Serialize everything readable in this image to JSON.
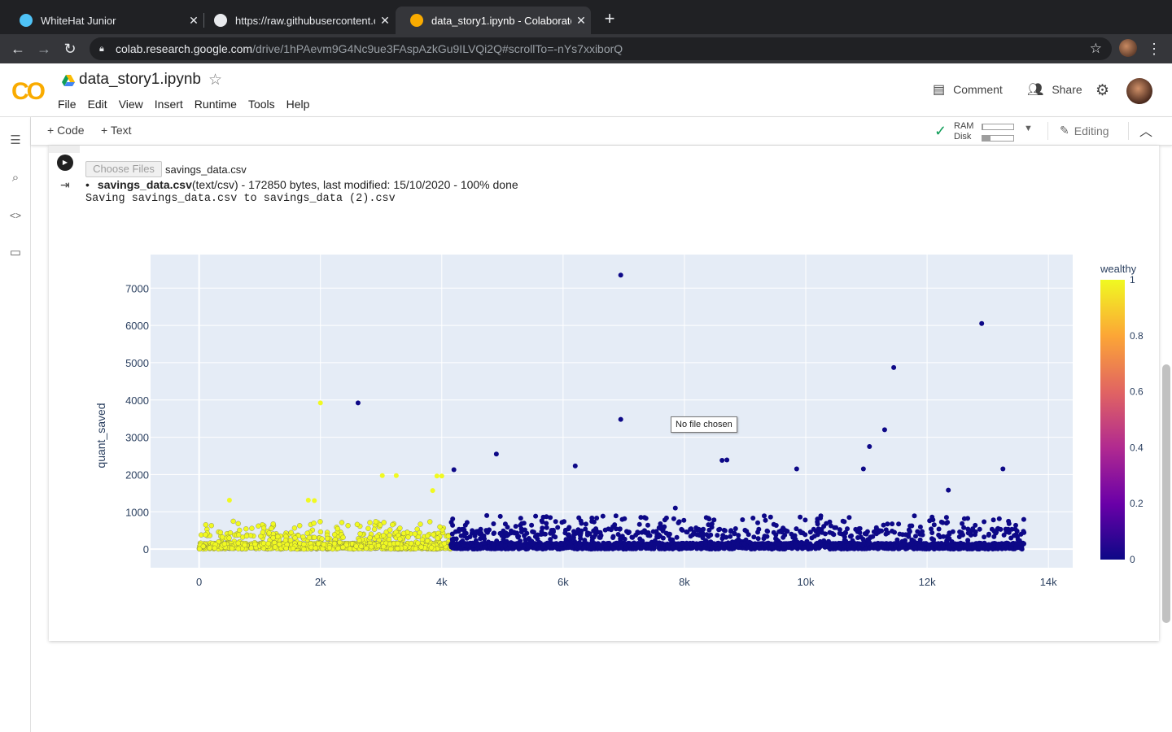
{
  "browser": {
    "tabs": [
      {
        "title": "WhiteHat Junior",
        "active": false,
        "icon": "whitehat-favicon"
      },
      {
        "title": "https://raw.githubusercontent.c",
        "active": false,
        "icon": "globe-icon"
      },
      {
        "title": "data_story1.ipynb - Colaborato",
        "active": true,
        "icon": "colab-favicon"
      }
    ],
    "url_host": "colab.research.google.com",
    "url_path": "/drive/1hPAevm9G4Nc9ue3FAspAzkGu9ILVQi2Q#scrollTo=-nYs7xxiborQ"
  },
  "colab": {
    "logo": "CO",
    "notebook_title": "data_story1.ipynb",
    "menu": [
      "File",
      "Edit",
      "View",
      "Insert",
      "Runtime",
      "Tools",
      "Help"
    ],
    "comment_label": "Comment",
    "share_label": "Share",
    "add_code_label": "+ Code",
    "add_text_label": "+ Text",
    "ram_label": "RAM",
    "disk_label": "Disk",
    "ram_fraction": 0.03,
    "disk_fraction": 0.27,
    "editing_label": "Editing"
  },
  "cell": {
    "choose_files_label": "Choose Files",
    "chosen_file": "savings_data.csv",
    "upload_filename": "savings_data.csv",
    "upload_details": "(text/csv) - 172850 bytes, last modified: 15/10/2020 - 100% done",
    "saving_message": "Saving savings_data.csv to savings_data (2).csv",
    "tooltip": "No file chosen"
  },
  "chart_data": {
    "type": "scatter",
    "xlabel": "",
    "ylabel": "quant_saved",
    "xlim": [
      -800,
      14400
    ],
    "ylim": [
      -500,
      7900
    ],
    "x_ticks": [
      0,
      2000,
      4000,
      6000,
      8000,
      10000,
      12000,
      14000
    ],
    "x_tick_labels": [
      "0",
      "2k",
      "4k",
      "6k",
      "8k",
      "10k",
      "12k",
      "14k"
    ],
    "y_ticks": [
      0,
      1000,
      2000,
      3000,
      4000,
      5000,
      6000,
      7000
    ],
    "y_tick_labels": [
      "0",
      "1000",
      "2000",
      "3000",
      "4000",
      "5000",
      "6000",
      "7000"
    ],
    "colorbar": {
      "title": "wealthy",
      "ticks": [
        0,
        0.2,
        0.4,
        0.6,
        0.8,
        1
      ],
      "tick_labels": [
        "0",
        "0.2",
        "0.4",
        "0.6",
        "0.8",
        "1"
      ],
      "colors": [
        "#0d0887",
        "#6a00a8",
        "#b12a90",
        "#e16462",
        "#fca636",
        "#f0f921"
      ]
    },
    "plot_bgcolor": "#e5ecf6",
    "grid": true,
    "series": [
      {
        "wealthy": 1,
        "x_range": [
          0,
          4150
        ],
        "typical_y": [
          0,
          500
        ]
      },
      {
        "wealthy": 0,
        "x_range": [
          4150,
          13600
        ],
        "typical_y": [
          0,
          600
        ]
      }
    ],
    "notable_points": [
      {
        "x": 6950,
        "y": 7350,
        "wealthy": 0
      },
      {
        "x": 12900,
        "y": 6050,
        "wealthy": 0
      },
      {
        "x": 11450,
        "y": 4870,
        "wealthy": 0
      },
      {
        "x": 2000,
        "y": 3920,
        "wealthy": 1
      },
      {
        "x": 2620,
        "y": 3920,
        "wealthy": 0
      },
      {
        "x": 6950,
        "y": 3480,
        "wealthy": 0
      },
      {
        "x": 11300,
        "y": 3200,
        "wealthy": 0
      },
      {
        "x": 11050,
        "y": 2750,
        "wealthy": 0
      },
      {
        "x": 4900,
        "y": 2550,
        "wealthy": 0
      },
      {
        "x": 6200,
        "y": 2230,
        "wealthy": 0
      },
      {
        "x": 8620,
        "y": 2380,
        "wealthy": 0
      },
      {
        "x": 8700,
        "y": 2390,
        "wealthy": 0
      },
      {
        "x": 4200,
        "y": 2130,
        "wealthy": 0
      },
      {
        "x": 9850,
        "y": 2150,
        "wealthy": 0
      },
      {
        "x": 10950,
        "y": 2150,
        "wealthy": 0
      },
      {
        "x": 13250,
        "y": 2150,
        "wealthy": 0
      },
      {
        "x": 3020,
        "y": 1970,
        "wealthy": 1
      },
      {
        "x": 3250,
        "y": 1970,
        "wealthy": 1
      },
      {
        "x": 3920,
        "y": 1960,
        "wealthy": 1
      },
      {
        "x": 4000,
        "y": 1960,
        "wealthy": 1
      },
      {
        "x": 3850,
        "y": 1570,
        "wealthy": 1
      },
      {
        "x": 7850,
        "y": 1100,
        "wealthy": 0
      },
      {
        "x": 12350,
        "y": 1580,
        "wealthy": 0
      },
      {
        "x": 500,
        "y": 1310,
        "wealthy": 1
      },
      {
        "x": 1800,
        "y": 1310,
        "wealthy": 1
      },
      {
        "x": 1900,
        "y": 1300,
        "wealthy": 1
      }
    ]
  }
}
